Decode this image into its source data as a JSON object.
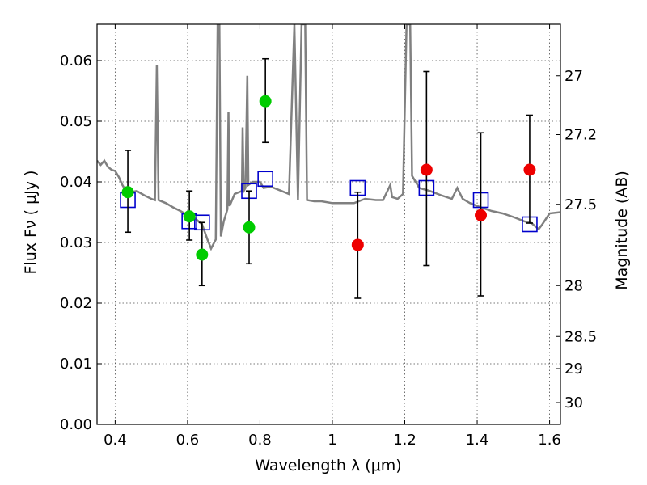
{
  "chart_data": {
    "type": "scatter",
    "xlabel": "Wavelength  λ (μm)",
    "ylabel": "Flux  Fν  ( μJy )",
    "y2label": "Magnitude (AB)",
    "xlim": [
      0.35,
      1.63
    ],
    "ylim": [
      0.0,
      0.066
    ],
    "grid": true,
    "x_ticks": [
      0.4,
      0.6,
      0.8,
      1.0,
      1.2,
      1.4,
      1.6
    ],
    "x_tick_labels": [
      "0.4",
      "0.6",
      "0.8",
      "1",
      "1.2",
      "1.4",
      "1.6"
    ],
    "y_ticks": [
      0.0,
      0.01,
      0.02,
      0.03,
      0.04,
      0.05,
      0.06
    ],
    "y_tick_labels": [
      "0.00",
      "0.01",
      "0.02",
      "0.03",
      "0.04",
      "0.05",
      "0.06"
    ],
    "y2_ticks": [
      {
        "label": "27",
        "flux": 0.0575
      },
      {
        "label": "27.2",
        "flux": 0.0478
      },
      {
        "label": "27.5",
        "flux": 0.0363
      },
      {
        "label": "28",
        "flux": 0.0229
      },
      {
        "label": "28.5",
        "flux": 0.0145
      },
      {
        "label": "29",
        "flux": 0.0092
      },
      {
        "label": "30",
        "flux": 0.0036
      }
    ],
    "model_spectrum": {
      "color": "#808080",
      "points": [
        [
          0.35,
          0.0435
        ],
        [
          0.36,
          0.0428
        ],
        [
          0.37,
          0.0435
        ],
        [
          0.38,
          0.0425
        ],
        [
          0.39,
          0.042
        ],
        [
          0.4,
          0.0418
        ],
        [
          0.41,
          0.0408
        ],
        [
          0.42,
          0.0395
        ],
        [
          0.43,
          0.0385
        ],
        [
          0.44,
          0.0383
        ],
        [
          0.46,
          0.0385
        ],
        [
          0.48,
          0.0378
        ],
        [
          0.5,
          0.0372
        ],
        [
          0.51,
          0.037
        ],
        [
          0.515,
          0.0592
        ],
        [
          0.52,
          0.037
        ],
        [
          0.54,
          0.0365
        ],
        [
          0.56,
          0.0358
        ],
        [
          0.58,
          0.0352
        ],
        [
          0.6,
          0.0345
        ],
        [
          0.62,
          0.034
        ],
        [
          0.64,
          0.033
        ],
        [
          0.655,
          0.0305
        ],
        [
          0.665,
          0.029
        ],
        [
          0.672,
          0.0298
        ],
        [
          0.678,
          0.0305
        ],
        [
          0.683,
          0.066
        ],
        [
          0.688,
          0.066
        ],
        [
          0.692,
          0.031
        ],
        [
          0.7,
          0.0335
        ],
        [
          0.71,
          0.0355
        ],
        [
          0.713,
          0.0515
        ],
        [
          0.716,
          0.036
        ],
        [
          0.73,
          0.038
        ],
        [
          0.75,
          0.0385
        ],
        [
          0.752,
          0.049
        ],
        [
          0.755,
          0.0385
        ],
        [
          0.76,
          0.039
        ],
        [
          0.765,
          0.0575
        ],
        [
          0.768,
          0.0395
        ],
        [
          0.78,
          0.04
        ],
        [
          0.8,
          0.04
        ],
        [
          0.81,
          0.039
        ],
        [
          0.83,
          0.0392
        ],
        [
          0.86,
          0.0385
        ],
        [
          0.88,
          0.038
        ],
        [
          0.895,
          0.066
        ],
        [
          0.905,
          0.037
        ],
        [
          0.915,
          0.066
        ],
        [
          0.925,
          0.066
        ],
        [
          0.93,
          0.037
        ],
        [
          0.95,
          0.0368
        ],
        [
          0.97,
          0.0368
        ],
        [
          1.0,
          0.0365
        ],
        [
          1.03,
          0.0365
        ],
        [
          1.06,
          0.0365
        ],
        [
          1.09,
          0.0372
        ],
        [
          1.12,
          0.037
        ],
        [
          1.14,
          0.037
        ],
        [
          1.16,
          0.0395
        ],
        [
          1.165,
          0.0375
        ],
        [
          1.18,
          0.0372
        ],
        [
          1.195,
          0.038
        ],
        [
          1.205,
          0.066
        ],
        [
          1.215,
          0.066
        ],
        [
          1.22,
          0.041
        ],
        [
          1.24,
          0.039
        ],
        [
          1.27,
          0.0385
        ],
        [
          1.3,
          0.0378
        ],
        [
          1.33,
          0.0372
        ],
        [
          1.345,
          0.039
        ],
        [
          1.36,
          0.0372
        ],
        [
          1.38,
          0.0365
        ],
        [
          1.41,
          0.0358
        ],
        [
          1.44,
          0.0352
        ],
        [
          1.47,
          0.0348
        ],
        [
          1.5,
          0.0342
        ],
        [
          1.53,
          0.0335
        ],
        [
          1.55,
          0.0332
        ],
        [
          1.57,
          0.0322
        ],
        [
          1.58,
          0.033
        ],
        [
          1.6,
          0.0348
        ],
        [
          1.63,
          0.035
        ]
      ]
    },
    "series": [
      {
        "marker": "square",
        "color": "#0000cc",
        "points": [
          [
            0.435,
            0.037
          ],
          [
            0.605,
            0.0335
          ],
          [
            0.64,
            0.0333
          ],
          [
            0.77,
            0.0385
          ],
          [
            0.815,
            0.0405
          ],
          [
            1.07,
            0.039
          ],
          [
            1.26,
            0.039
          ],
          [
            1.41,
            0.037
          ],
          [
            1.545,
            0.033
          ]
        ]
      },
      {
        "marker": "circle",
        "color": "#00cc00",
        "points": [
          {
            "x": 0.435,
            "y": 0.0383,
            "err_low": 0.0317,
            "err_high": 0.0452
          },
          {
            "x": 0.605,
            "y": 0.0343,
            "err_low": 0.0304,
            "err_high": 0.0385
          },
          {
            "x": 0.64,
            "y": 0.028,
            "err_low": 0.0229,
            "err_high": 0.0333
          },
          {
            "x": 0.77,
            "y": 0.0325,
            "err_low": 0.0265,
            "err_high": 0.0385
          },
          {
            "x": 0.815,
            "y": 0.0533,
            "err_low": 0.0465,
            "err_high": 0.0603
          }
        ]
      },
      {
        "marker": "circle",
        "color": "#ee0000",
        "points": [
          {
            "x": 1.07,
            "y": 0.0296,
            "err_low": 0.0208,
            "err_high": 0.0383
          },
          {
            "x": 1.26,
            "y": 0.042,
            "err_low": 0.0262,
            "err_high": 0.0582
          },
          {
            "x": 1.41,
            "y": 0.0345,
            "err_low": 0.0212,
            "err_high": 0.0481
          },
          {
            "x": 1.545,
            "y": 0.042,
            "err_low": 0.0332,
            "err_high": 0.051
          }
        ]
      }
    ]
  }
}
